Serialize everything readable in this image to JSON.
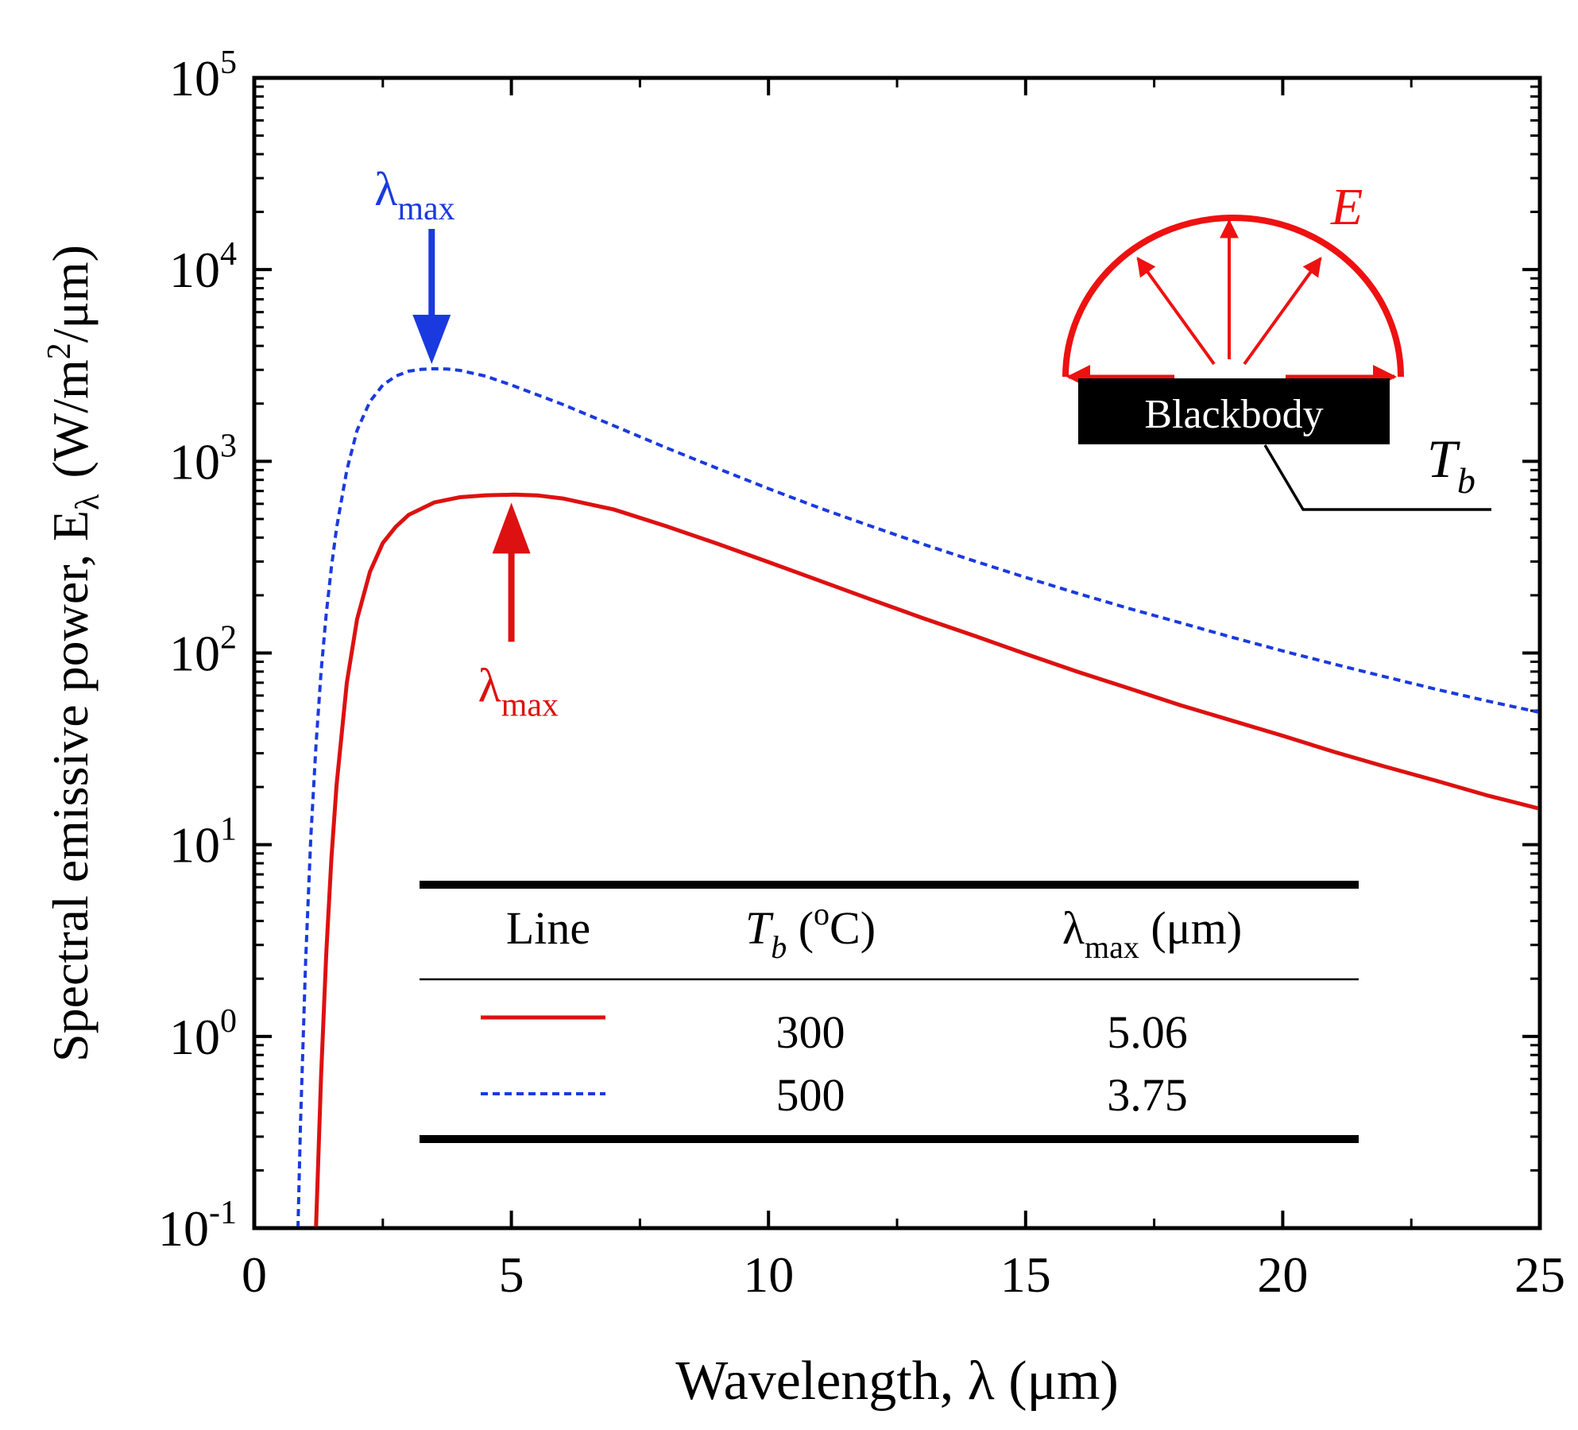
{
  "chart_data": {
    "type": "line",
    "xlabel": "Wavelength, λ (μm)",
    "ylabel": "Spectral emissive power, E",
    "ylabel_sub": "λ",
    "ylabel_units": "(W/m",
    "ylabel_units_sup": "2",
    "ylabel_units_end": "/μm)",
    "x_scale": "linear",
    "y_scale": "log",
    "xlim": [
      0,
      25
    ],
    "ylim": [
      0.1,
      100000
    ],
    "x_ticks": [
      0,
      5,
      10,
      15,
      20,
      25
    ],
    "x_tick_labels": [
      "0",
      "5",
      "10",
      "15",
      "20",
      "25"
    ],
    "y_ticks": [
      0.1,
      1,
      10,
      100,
      1000,
      10000,
      100000
    ],
    "y_tick_bases": [
      "10",
      "10",
      "10",
      "10",
      "10",
      "10",
      "10"
    ],
    "y_tick_exponents": [
      "-1",
      "0",
      "1",
      "2",
      "3",
      "4",
      "5"
    ],
    "grid": false,
    "series": [
      {
        "name": "300",
        "temperature_c": 300,
        "lambda_max": "5.06",
        "color": "#dd1111",
        "style": "solid",
        "x": [
          1.2,
          1.3,
          1.4,
          1.5,
          1.6,
          1.8,
          2.0,
          2.25,
          2.5,
          2.75,
          3.0,
          3.5,
          4.0,
          4.5,
          5.06,
          5.5,
          6.0,
          7.0,
          8.0,
          9.0,
          10.0,
          11.0,
          12.0,
          13.0,
          14.0,
          15.0,
          16.0,
          17.0,
          18.0,
          19.0,
          20.0,
          21.0,
          22.0,
          23.0,
          24.0,
          25.0
        ],
        "y": [
          0.1,
          0.62,
          2.7,
          8.5,
          20.5,
          70,
          150,
          265,
          375,
          455,
          525,
          610,
          650,
          665,
          670,
          664,
          640,
          560,
          460,
          372,
          298,
          238,
          190,
          152,
          123,
          99,
          80,
          65.5,
          53.5,
          44.5,
          37,
          30.5,
          25.5,
          21.5,
          18,
          15.4
        ]
      },
      {
        "name": "500",
        "temperature_c": 500,
        "lambda_max": "3.75",
        "color": "#1a3ae0",
        "style": "dashed",
        "x": [
          0.85,
          0.9,
          1.0,
          1.1,
          1.2,
          1.3,
          1.4,
          1.5,
          1.6,
          1.8,
          2.0,
          2.25,
          2.5,
          2.75,
          3.0,
          3.25,
          3.5,
          3.75,
          4.0,
          4.5,
          5.0,
          6.0,
          7.0,
          8.0,
          9.0,
          10.0,
          11.0,
          12.0,
          13.0,
          14.0,
          15.0,
          16.0,
          17.0,
          18.0,
          19.0,
          20.0,
          21.0,
          22.0,
          23.0,
          24.0,
          25.0
        ],
        "y": [
          0.1,
          0.35,
          2.5,
          11,
          33,
          80,
          160,
          280,
          450,
          900,
          1450,
          2050,
          2500,
          2780,
          2950,
          3020,
          3040,
          3030,
          2980,
          2780,
          2500,
          1980,
          1530,
          1180,
          920,
          720,
          570,
          458,
          370,
          302,
          248,
          205,
          171,
          144,
          121,
          102.5,
          87.5,
          75,
          64.5,
          56,
          49
        ]
      }
    ],
    "annotations": {
      "lambda_max_symbol": "λ",
      "lambda_max_sub": "max",
      "blue_arrow_x": 3.45,
      "red_arrow_x": 5.0
    },
    "inset": {
      "emission_label": "E",
      "body_label": "Blackbody",
      "temperature_label": "T",
      "temperature_sub": "b"
    },
    "legend": {
      "placement": "lower-center",
      "headers": {
        "line": "Line",
        "tb": "T",
        "tb_sub": "b",
        "tb_units_open": " (",
        "tb_units_degree": "o",
        "tb_units_close": "C)",
        "lambda": "λ",
        "lambda_sub": "max",
        "lambda_units": " (μm)"
      }
    }
  }
}
